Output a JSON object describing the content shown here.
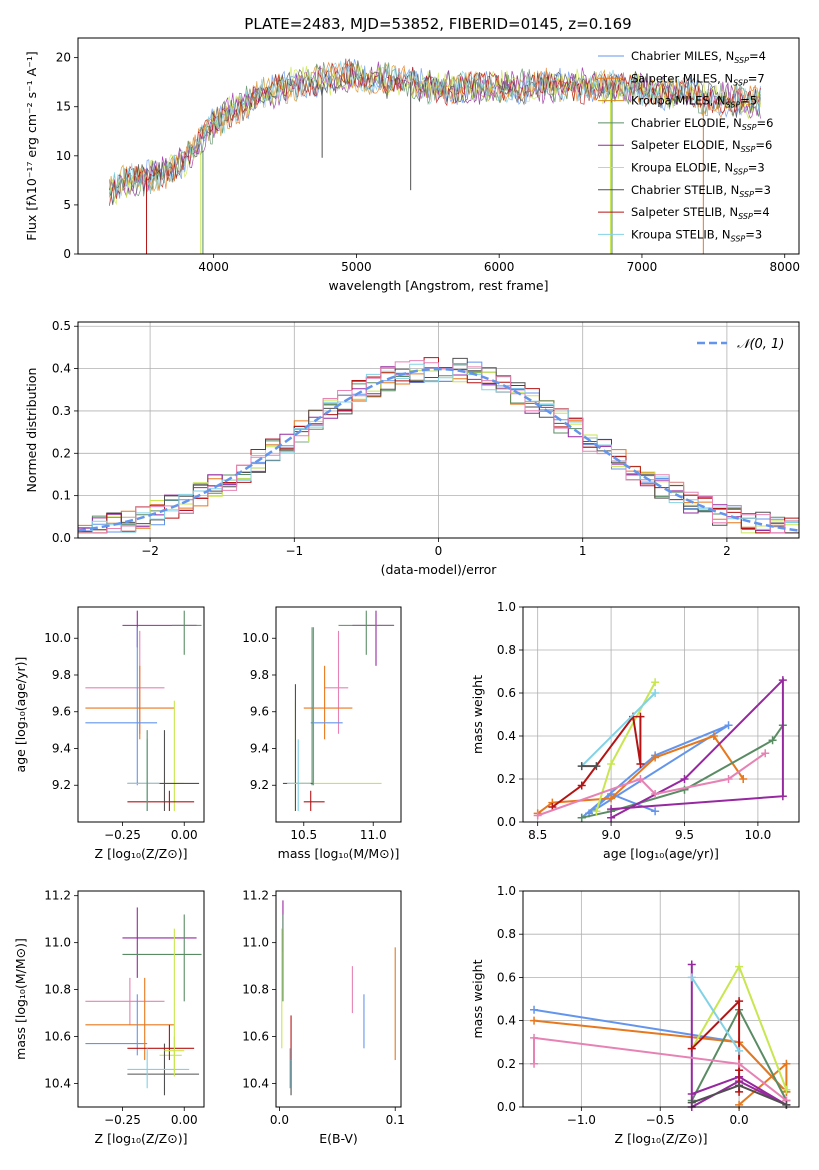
{
  "figure_title": "PLATE=2483, MJD=53852, FIBERID=0145, z=0.169",
  "colors": {
    "chab_miles": "#6495ED",
    "salp_miles": "#E6781E",
    "krou_miles": "#D2911E",
    "chab_elodie": "#5A8C64",
    "salp_elodie": "#9628A0",
    "krou_elodie": "#C8E650",
    "chab_stelib": "#505050",
    "salp_stelib": "#B41414",
    "krou_stelib": "#82D2E6",
    "pink": "#E682B4",
    "normal": "#6495ED"
  },
  "chart_data": [
    {
      "id": "spectrum",
      "type": "line",
      "title": "PLATE=2483, MJD=53852, FIBERID=0145, z=0.169",
      "xlabel": "wavelength [Angstrom, rest frame]",
      "ylabel": "Flux [fλ10⁻¹⁷ erg cm⁻² s⁻¹ A⁻¹]",
      "xlim": [
        3050,
        8100
      ],
      "ylim": [
        0,
        22
      ],
      "xticks": [
        4000,
        5000,
        6000,
        7000,
        8000
      ],
      "yticks": [
        0,
        5,
        10,
        15,
        20
      ],
      "grid": false,
      "legend_position": "top-right",
      "continuum": [
        [
          3270,
          6.5
        ],
        [
          3400,
          7.5
        ],
        [
          3600,
          8.0
        ],
        [
          3800,
          9.5
        ],
        [
          3950,
          12.5
        ],
        [
          4100,
          14.5
        ],
        [
          4300,
          16.0
        ],
        [
          4600,
          17.5
        ],
        [
          5000,
          18.2
        ],
        [
          5500,
          17.0
        ],
        [
          6000,
          17.0
        ],
        [
          6500,
          17.2
        ],
        [
          7000,
          16.8
        ],
        [
          7500,
          15.8
        ],
        [
          7830,
          15.5
        ]
      ],
      "series": [
        {
          "name": "Chabrier MILES, N_SSP=4",
          "color_key": "chab_miles"
        },
        {
          "name": "Salpeter MILES, N_SSP=7",
          "color_key": "salp_miles"
        },
        {
          "name": "Kroupa MILES, N_SSP=5",
          "color_key": "krou_miles"
        },
        {
          "name": "Chabrier ELODIE, N_SSP=6",
          "color_key": "chab_elodie"
        },
        {
          "name": "Salpeter ELODIE, N_SSP=6",
          "color_key": "salp_elodie"
        },
        {
          "name": "Kroupa ELODIE, N_SSP=3",
          "color_key": "krou_elodie"
        },
        {
          "name": "Chabrier STELIB, N_SSP=3",
          "color_key": "chab_stelib"
        },
        {
          "name": "Salpeter STELIB, N_SSP=4",
          "color_key": "salp_stelib"
        },
        {
          "name": "Kroupa STELIB, N_SSP=3",
          "color_key": "krou_stelib"
        }
      ],
      "spikes": [
        {
          "x": 3530,
          "from": 7.8,
          "to": 0,
          "color_key": "salp_stelib"
        },
        {
          "x": 3910,
          "from": 10.5,
          "to": 0,
          "color_key": "krou_elodie"
        },
        {
          "x": 3925,
          "from": 10.5,
          "to": 0,
          "color_key": "chab_elodie"
        },
        {
          "x": 4760,
          "from": 17.0,
          "to": 9.8,
          "color_key": "chab_stelib"
        },
        {
          "x": 5380,
          "from": 17.5,
          "to": 6.5,
          "color_key": "chab_stelib"
        },
        {
          "x": 6780,
          "from": 16.8,
          "to": 0,
          "color_key": "krou_elodie"
        },
        {
          "x": 6790,
          "from": 16.8,
          "to": 0,
          "color_key": "chab_elodie"
        },
        {
          "x": 7430,
          "from": 16.0,
          "to": 0,
          "color_key": "salp_miles"
        }
      ]
    },
    {
      "id": "residual_hist",
      "type": "histogram",
      "xlabel": "(data-model)/error",
      "ylabel": "Normed distribution",
      "xlim": [
        -2.5,
        2.5
      ],
      "ylim": [
        0,
        0.51
      ],
      "xticks": [
        -2,
        -1,
        0,
        1,
        2
      ],
      "yticks": [
        0.0,
        0.1,
        0.2,
        0.3,
        0.4,
        0.5
      ],
      "grid": true,
      "bin_width": 0.1,
      "legend_label": "N(0,1)",
      "legend_position": "top-right",
      "series_color_keys": [
        "chab_miles",
        "salp_miles",
        "chab_elodie",
        "salp_elodie",
        "krou_elodie",
        "chab_stelib",
        "salp_stelib",
        "krou_stelib",
        "pink"
      ]
    },
    {
      "id": "age_vs_Z",
      "type": "errorbar",
      "xlabel": "Z [log₁₀(Z/Z⊙)]",
      "ylabel": "age [log₁₀(age/yr)]",
      "xlim": [
        -0.43,
        0.08
      ],
      "ylim": [
        9.0,
        10.17
      ],
      "xticks": [
        -0.25,
        0.0
      ],
      "yticks": [
        9.2,
        9.4,
        9.6,
        9.8,
        10.0
      ],
      "points": [
        {
          "color_key": "salp_elodie",
          "x": -0.19,
          "y": 10.07,
          "xlo": -0.25,
          "xhi": 0.05,
          "ylo": 9.95,
          "yhi": 10.15
        },
        {
          "color_key": "chab_elodie",
          "x": 0.0,
          "y": 10.07,
          "xlo": -0.05,
          "xhi": 0.07,
          "ylo": 9.91,
          "yhi": 10.15
        },
        {
          "color_key": "pink",
          "x": -0.18,
          "y": 9.73,
          "xlo": -0.4,
          "xhi": -0.08,
          "ylo": 9.48,
          "yhi": 10.04
        },
        {
          "color_key": "salp_miles",
          "x": -0.18,
          "y": 9.62,
          "xlo": -0.4,
          "xhi": -0.04,
          "ylo": 9.45,
          "yhi": 9.85
        },
        {
          "color_key": "chab_miles",
          "x": -0.19,
          "y": 9.54,
          "xlo": -0.4,
          "xhi": -0.11,
          "ylo": 9.2,
          "yhi": 10.06
        },
        {
          "color_key": "krou_elodie",
          "x": -0.04,
          "y": 9.21,
          "xlo": -0.07,
          "xhi": 0.0,
          "ylo": 9.06,
          "yhi": 9.66
        },
        {
          "color_key": "chab_stelib",
          "x": -0.08,
          "y": 9.21,
          "xlo": -0.23,
          "xhi": 0.06,
          "ylo": 9.06,
          "yhi": 9.5
        },
        {
          "color_key": "salp_stelib",
          "x": -0.06,
          "y": 9.11,
          "xlo": -0.23,
          "xhi": 0.04,
          "ylo": 9.06,
          "yhi": 9.17
        },
        {
          "color_key": "krou_stelib",
          "x": -0.15,
          "y": 9.21,
          "xlo": -0.23,
          "xhi": -0.1,
          "ylo": 9.06,
          "yhi": 9.45
        },
        {
          "color_key": "chab_elodie",
          "x": -0.15,
          "y": 9.45,
          "xlo": -0.15,
          "xhi": -0.15,
          "ylo": 9.06,
          "yhi": 9.5
        }
      ]
    },
    {
      "id": "age_vs_mass",
      "type": "errorbar",
      "xlabel": "mass [log₁₀(M/M⊙)]",
      "ylabel": "",
      "xlim": [
        10.3,
        11.2
      ],
      "ylim": [
        9.0,
        10.17
      ],
      "xticks": [
        10.5,
        11.0
      ],
      "yticks": [
        9.2,
        9.4,
        9.6,
        9.8,
        10.0
      ],
      "points": [
        {
          "color_key": "salp_elodie",
          "x": 11.02,
          "y": 10.07,
          "xlo": 10.85,
          "xhi": 11.15,
          "ylo": 9.85,
          "yhi": 10.15
        },
        {
          "color_key": "chab_elodie",
          "x": 10.95,
          "y": 10.07,
          "xlo": 10.75,
          "xhi": 11.15,
          "ylo": 9.91,
          "yhi": 10.15
        },
        {
          "color_key": "pink",
          "x": 10.75,
          "y": 9.73,
          "xlo": 10.65,
          "xhi": 10.82,
          "ylo": 9.48,
          "yhi": 10.04
        },
        {
          "color_key": "salp_miles",
          "x": 10.65,
          "y": 9.62,
          "xlo": 10.5,
          "xhi": 10.85,
          "ylo": 9.45,
          "yhi": 9.85
        },
        {
          "color_key": "chab_miles",
          "x": 10.57,
          "y": 9.54,
          "xlo": 10.55,
          "xhi": 10.78,
          "ylo": 9.2,
          "yhi": 10.06
        },
        {
          "color_key": "krou_elodie",
          "x": 10.44,
          "y": 9.21,
          "xlo": 10.43,
          "xhi": 11.06,
          "ylo": 9.06,
          "yhi": 9.66
        },
        {
          "color_key": "chab_stelib",
          "x": 10.44,
          "y": 9.21,
          "xlo": 10.35,
          "xhi": 10.57,
          "ylo": 9.06,
          "yhi": 9.75
        },
        {
          "color_key": "salp_stelib",
          "x": 10.55,
          "y": 9.11,
          "xlo": 10.5,
          "xhi": 10.65,
          "ylo": 9.06,
          "yhi": 9.17
        },
        {
          "color_key": "krou_stelib",
          "x": 10.46,
          "y": 9.21,
          "xlo": 10.38,
          "xhi": 10.55,
          "ylo": 9.06,
          "yhi": 9.45
        },
        {
          "color_key": "chab_elodie",
          "x": 10.56,
          "y": 9.45,
          "xlo": 10.56,
          "xhi": 10.56,
          "ylo": 9.2,
          "yhi": 10.06
        }
      ]
    },
    {
      "id": "weight_vs_age",
      "type": "line",
      "xlabel": "age [log₁₀(age/yr)]",
      "ylabel": "mass weight",
      "xlim": [
        8.4,
        10.28
      ],
      "ylim": [
        0,
        1.0
      ],
      "xticks": [
        8.5,
        9.0,
        9.5,
        10.0
      ],
      "yticks": [
        0.0,
        0.2,
        0.4,
        0.6,
        0.8,
        1.0
      ],
      "grid": true,
      "series": [
        {
          "color_key": "chab_miles",
          "x": [
            8.8,
            9.3,
            9.8,
            8.85,
            9.0,
            9.3
          ],
          "y": [
            0.02,
            0.31,
            0.45,
            0.04,
            0.13,
            0.05
          ]
        },
        {
          "color_key": "salp_miles",
          "x": [
            8.5,
            8.6,
            9.0,
            9.3,
            9.7,
            9.9
          ],
          "y": [
            0.04,
            0.09,
            0.11,
            0.3,
            0.4,
            0.2
          ]
        },
        {
          "color_key": "chab_elodie",
          "x": [
            8.8,
            9.0,
            9.5,
            10.1,
            10.17
          ],
          "y": [
            0.02,
            0.05,
            0.15,
            0.38,
            0.45
          ]
        },
        {
          "color_key": "salp_elodie",
          "x": [
            9.0,
            9.5,
            10.17,
            10.17,
            9.0
          ],
          "y": [
            0.02,
            0.2,
            0.66,
            0.12,
            0.06
          ]
        },
        {
          "color_key": "krou_elodie",
          "x": [
            8.9,
            9.0,
            9.3
          ],
          "y": [
            0.05,
            0.27,
            0.65
          ]
        },
        {
          "color_key": "salp_stelib",
          "x": [
            8.6,
            8.8,
            9.15,
            9.2,
            9.2
          ],
          "y": [
            0.07,
            0.17,
            0.49,
            0.27,
            0.49
          ]
        },
        {
          "color_key": "krou_stelib",
          "x": [
            8.8,
            9.3
          ],
          "y": [
            0.26,
            0.6
          ]
        },
        {
          "color_key": "pink",
          "x": [
            8.5,
            9.2,
            9.3,
            9.8,
            10.05
          ],
          "y": [
            0.03,
            0.2,
            0.13,
            0.2,
            0.32
          ]
        },
        {
          "color_key": "chab_stelib",
          "x": [
            8.8,
            8.9
          ],
          "y": [
            0.26,
            0.26
          ]
        }
      ]
    },
    {
      "id": "mass_vs_Z",
      "type": "errorbar",
      "xlabel": "Z [log₁₀(Z/Z⊙)]",
      "ylabel": "mass [log₁₀(M/M⊙)]",
      "xlim": [
        -0.43,
        0.08
      ],
      "ylim": [
        10.3,
        11.22
      ],
      "xticks": [
        -0.25,
        0.0
      ],
      "yticks": [
        10.4,
        10.6,
        10.8,
        11.0,
        11.2
      ],
      "points": [
        {
          "color_key": "salp_elodie",
          "x": -0.19,
          "y": 11.02,
          "xlo": -0.25,
          "xhi": 0.05,
          "ylo": 10.85,
          "yhi": 11.15
        },
        {
          "color_key": "chab_elodie",
          "x": 0.0,
          "y": 10.95,
          "xlo": -0.25,
          "xhi": 0.07,
          "ylo": 10.75,
          "yhi": 11.12
        },
        {
          "color_key": "pink",
          "x": -0.22,
          "y": 10.75,
          "xlo": -0.4,
          "xhi": -0.08,
          "ylo": 10.65,
          "yhi": 10.85
        },
        {
          "color_key": "salp_miles",
          "x": -0.16,
          "y": 10.65,
          "xlo": -0.4,
          "xhi": -0.04,
          "ylo": 10.5,
          "yhi": 10.85
        },
        {
          "color_key": "chab_miles",
          "x": -0.19,
          "y": 10.57,
          "xlo": -0.4,
          "xhi": -0.15,
          "ylo": 10.52,
          "yhi": 10.78
        },
        {
          "color_key": "krou_elodie",
          "x": -0.04,
          "y": 10.52,
          "xlo": -0.1,
          "xhi": -0.01,
          "ylo": 10.45,
          "yhi": 11.06
        },
        {
          "color_key": "chab_stelib",
          "x": -0.08,
          "y": 10.44,
          "xlo": -0.23,
          "xhi": 0.06,
          "ylo": 10.35,
          "yhi": 10.57
        },
        {
          "color_key": "salp_stelib",
          "x": -0.06,
          "y": 10.55,
          "xlo": -0.23,
          "xhi": 0.04,
          "ylo": 10.5,
          "yhi": 10.65
        },
        {
          "color_key": "krou_stelib",
          "x": -0.15,
          "y": 10.46,
          "xlo": -0.23,
          "xhi": 0.02,
          "ylo": 10.38,
          "yhi": 10.55
        },
        {
          "color_key": "krou_elodie",
          "x": -0.04,
          "y": 10.54,
          "xlo": -0.08,
          "xhi": 0.0,
          "ylo": 10.43,
          "yhi": 10.6
        }
      ]
    },
    {
      "id": "mass_vs_ebv",
      "type": "errorbar",
      "xlabel": "E(B-V)",
      "ylabel": "",
      "xlim": [
        -0.003,
        0.105
      ],
      "ylim": [
        10.3,
        11.22
      ],
      "xticks": [
        0.0,
        0.1
      ],
      "yticks": [
        10.4,
        10.6,
        10.8,
        11.0,
        11.2
      ],
      "points": [
        {
          "color_key": "salp_elodie",
          "x": 0.003,
          "y": 11.0,
          "xlo": 0.003,
          "xhi": 0.003,
          "ylo": 10.96,
          "yhi": 11.18
        },
        {
          "color_key": "krou_elodie",
          "x": 0.002,
          "y": 10.8,
          "xlo": 0.002,
          "xhi": 0.002,
          "ylo": 10.55,
          "yhi": 11.06
        },
        {
          "color_key": "chab_elodie",
          "x": 0.003,
          "y": 10.9,
          "xlo": 0.003,
          "xhi": 0.003,
          "ylo": 10.75,
          "yhi": 11.12
        },
        {
          "color_key": "salp_stelib",
          "x": 0.01,
          "y": 10.6,
          "xlo": 0.01,
          "xhi": 0.01,
          "ylo": 10.5,
          "yhi": 10.69
        },
        {
          "color_key": "krou_stelib",
          "x": 0.009,
          "y": 10.45,
          "xlo": 0.009,
          "xhi": 0.009,
          "ylo": 10.38,
          "yhi": 10.55
        },
        {
          "color_key": "chab_stelib",
          "x": 0.01,
          "y": 10.42,
          "xlo": 0.01,
          "xhi": 0.01,
          "ylo": 10.35,
          "yhi": 10.5
        },
        {
          "color_key": "pink",
          "x": 0.063,
          "y": 10.8,
          "xlo": 0.063,
          "xhi": 0.063,
          "ylo": 10.7,
          "yhi": 10.9
        },
        {
          "color_key": "chab_miles",
          "x": 0.073,
          "y": 10.65,
          "xlo": 0.073,
          "xhi": 0.073,
          "ylo": 10.55,
          "yhi": 10.78
        },
        {
          "color_key": "salp_miles",
          "x": 0.1,
          "y": 10.7,
          "xlo": 0.1,
          "xhi": 0.1,
          "ylo": 10.5,
          "yhi": 10.98
        }
      ]
    },
    {
      "id": "weight_vs_Z",
      "type": "line",
      "xlabel": "Z [log₁₀(Z/Z⊙)]",
      "ylabel": "mass weight",
      "xlim": [
        -1.37,
        0.38
      ],
      "ylim": [
        0,
        1.0
      ],
      "xticks": [
        -1.0,
        -0.5,
        0.0
      ],
      "yticks": [
        0.0,
        0.2,
        0.4,
        0.6,
        0.8,
        1.0
      ],
      "grid": true,
      "series": [
        {
          "color_key": "chab_miles",
          "x": [
            -1.3,
            0.0,
            0.3
          ],
          "y": [
            0.45,
            0.3,
            0.07
          ]
        },
        {
          "color_key": "salp_miles",
          "x": [
            -1.3,
            0.0,
            0.3,
            0.3,
            0.0
          ],
          "y": [
            0.4,
            0.3,
            0.07,
            0.2,
            0.01
          ]
        },
        {
          "color_key": "chab_elodie",
          "x": [
            -0.3,
            0.0,
            0.3
          ],
          "y": [
            0.03,
            0.45,
            0.03
          ]
        },
        {
          "color_key": "salp_elodie",
          "x": [
            -0.3,
            -0.3,
            0.0,
            0.3,
            0.0,
            -0.3
          ],
          "y": [
            0.66,
            0.0,
            0.12,
            0.01,
            0.14,
            0.06
          ]
        },
        {
          "color_key": "krou_elodie",
          "x": [
            -0.3,
            0.0,
            0.3
          ],
          "y": [
            0.27,
            0.65,
            0.08
          ]
        },
        {
          "color_key": "salp_stelib",
          "x": [
            -0.3,
            0.0,
            0.0,
            0.0
          ],
          "y": [
            0.27,
            0.49,
            0.17,
            0.07
          ]
        },
        {
          "color_key": "krou_stelib",
          "x": [
            -0.3,
            0.0
          ],
          "y": [
            0.6,
            0.26
          ]
        },
        {
          "color_key": "pink",
          "x": [
            -1.3,
            -1.3,
            0.0,
            0.3
          ],
          "y": [
            0.2,
            0.32,
            0.2,
            0.03
          ]
        },
        {
          "color_key": "chab_stelib",
          "x": [
            -0.3,
            0.0,
            0.3
          ],
          "y": [
            0.02,
            0.1,
            0.01
          ]
        }
      ]
    }
  ]
}
